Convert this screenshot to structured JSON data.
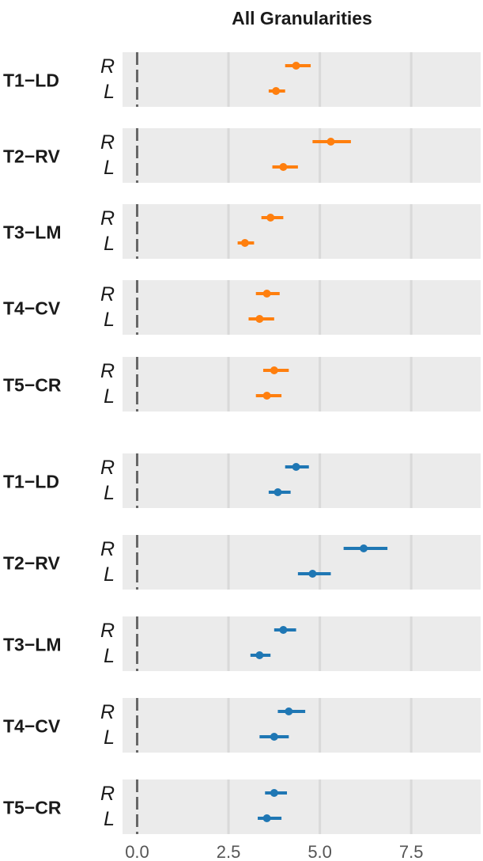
{
  "chart_data": {
    "type": "scatter",
    "title": "All Granularities",
    "xlabel": "",
    "ylabel": "",
    "xlim": [
      -0.4,
      9.4
    ],
    "x_ticks": [
      0.0,
      2.5,
      5.0,
      7.5
    ],
    "x_tick_labels": [
      "0.0",
      "2.5",
      "5.0",
      "7.5"
    ],
    "reference_line_x": 0,
    "grid": true,
    "colors": {
      "panel_bg": "#ebebeb",
      "grid": "#d9d9d9",
      "ref_line": "#666666"
    },
    "panels": [
      {
        "color": "#ff7f0e",
        "rows": [
          {
            "label": "T1−LD",
            "estimates": [
              {
                "side": "R",
                "value": 4.35,
                "lower": 4.05,
                "upper": 4.75
              },
              {
                "side": "L",
                "value": 3.8,
                "lower": 3.6,
                "upper": 4.05
              }
            ]
          },
          {
            "label": "T2−RV",
            "estimates": [
              {
                "side": "R",
                "value": 5.3,
                "lower": 4.8,
                "upper": 5.85
              },
              {
                "side": "L",
                "value": 4.0,
                "lower": 3.7,
                "upper": 4.4
              }
            ]
          },
          {
            "label": "T3−LM",
            "estimates": [
              {
                "side": "R",
                "value": 3.65,
                "lower": 3.4,
                "upper": 4.0
              },
              {
                "side": "L",
                "value": 2.95,
                "lower": 2.75,
                "upper": 3.2
              }
            ]
          },
          {
            "label": "T4−CV",
            "estimates": [
              {
                "side": "R",
                "value": 3.55,
                "lower": 3.25,
                "upper": 3.9
              },
              {
                "side": "L",
                "value": 3.35,
                "lower": 3.05,
                "upper": 3.75
              }
            ]
          },
          {
            "label": "T5−CR",
            "estimates": [
              {
                "side": "R",
                "value": 3.75,
                "lower": 3.45,
                "upper": 4.15
              },
              {
                "side": "L",
                "value": 3.55,
                "lower": 3.25,
                "upper": 3.95
              }
            ]
          }
        ]
      },
      {
        "color": "#1f77b4",
        "rows": [
          {
            "label": "T1−LD",
            "estimates": [
              {
                "side": "R",
                "value": 4.35,
                "lower": 4.05,
                "upper": 4.7
              },
              {
                "side": "L",
                "value": 3.85,
                "lower": 3.6,
                "upper": 4.2
              }
            ]
          },
          {
            "label": "T2−RV",
            "estimates": [
              {
                "side": "R",
                "value": 6.2,
                "lower": 5.65,
                "upper": 6.85
              },
              {
                "side": "L",
                "value": 4.8,
                "lower": 4.4,
                "upper": 5.3
              }
            ]
          },
          {
            "label": "T3−LM",
            "estimates": [
              {
                "side": "R",
                "value": 4.0,
                "lower": 3.75,
                "upper": 4.35
              },
              {
                "side": "L",
                "value": 3.35,
                "lower": 3.1,
                "upper": 3.65
              }
            ]
          },
          {
            "label": "T4−CV",
            "estimates": [
              {
                "side": "R",
                "value": 4.15,
                "lower": 3.85,
                "upper": 4.6
              },
              {
                "side": "L",
                "value": 3.75,
                "lower": 3.35,
                "upper": 4.15
              }
            ]
          },
          {
            "label": "T5−CR",
            "estimates": [
              {
                "side": "R",
                "value": 3.75,
                "lower": 3.5,
                "upper": 4.1
              },
              {
                "side": "L",
                "value": 3.55,
                "lower": 3.3,
                "upper": 3.95
              }
            ]
          }
        ]
      }
    ]
  }
}
